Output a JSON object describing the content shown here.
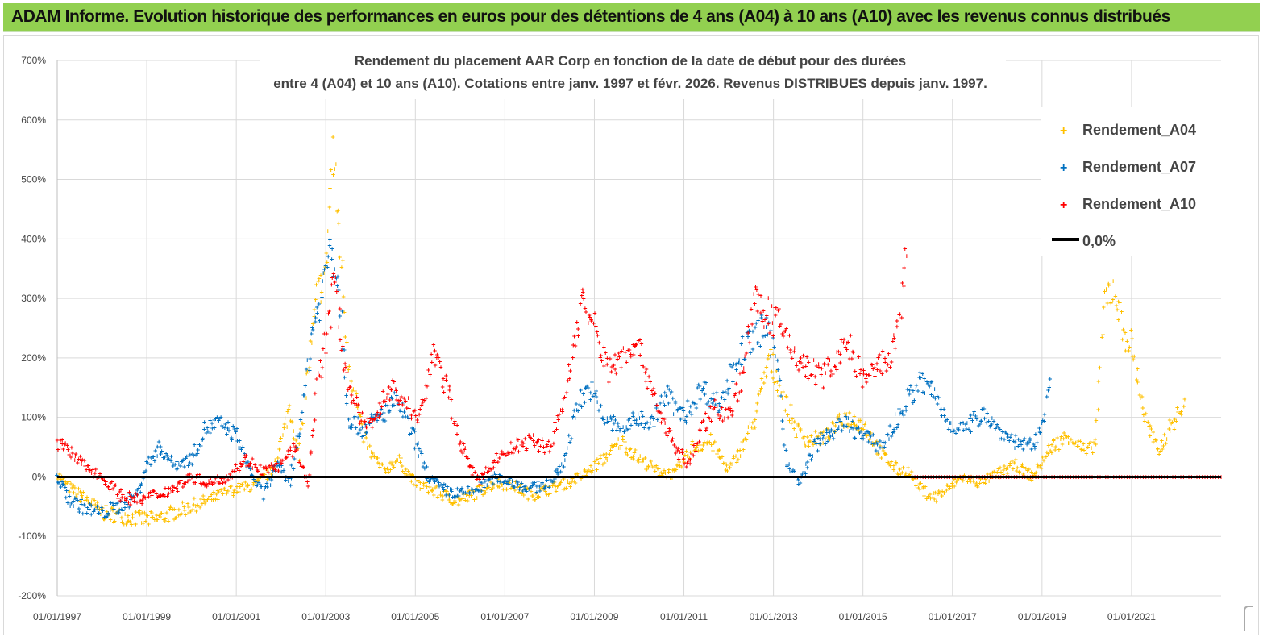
{
  "header": {
    "title": "ADAM Informe. Evolution historique des performances en euros pour des détentions de 4 ans (A04) à 10 ans (A10) avec les revenus connus distribués"
  },
  "colors": {
    "banner": "#92d050",
    "a04": "#ffc000",
    "a07": "#0070c0",
    "a10": "#ff0000",
    "zero": "#000000",
    "grid": "#d9d9d9"
  },
  "chart_data": {
    "type": "scatter",
    "title_line1": "Rendement du placement AAR Corp en fonction de la date de début pour des durées",
    "title_line2": "entre 4 (A04) et 10 ans (A10). Cotations entre janv. 1997 et févr. 2026. Revenus DISTRIBUES depuis janv. 1997.",
    "x_range": [
      1997.0,
      2023.0
    ],
    "ylim": [
      -200,
      700
    ],
    "y_ticks": [
      700,
      600,
      500,
      400,
      300,
      200,
      100,
      0,
      -100,
      -200
    ],
    "y_tick_labels": [
      "700%",
      "600%",
      "500%",
      "400%",
      "300%",
      "200%",
      "100%",
      "0%",
      "-100%",
      "-200%"
    ],
    "x_ticks": [
      1997,
      1999,
      2001,
      2003,
      2005,
      2007,
      2009,
      2011,
      2013,
      2015,
      2017,
      2019,
      2021
    ],
    "x_tick_labels": [
      "01/01/1997",
      "01/01/1999",
      "01/01/2001",
      "01/01/2003",
      "01/01/2005",
      "01/01/2007",
      "01/01/2009",
      "01/01/2011",
      "01/01/2013",
      "01/01/2015",
      "01/01/2017",
      "01/01/2019",
      "01/01/2021"
    ],
    "legend": [
      "Rendement_A04",
      "Rendement_A07",
      "Rendement_A10",
      "0,0%"
    ],
    "legend_position": "top-right",
    "series": [
      {
        "name": "Rendement_A04",
        "x": [
          1997.0,
          1997.3,
          1997.7,
          1998.0,
          1998.4,
          1998.8,
          1999.2,
          1999.6,
          2000.0,
          2000.5,
          2001.0,
          2001.4,
          2001.8,
          2002.0,
          2002.2,
          2002.4,
          2002.6,
          2002.8,
          2003.0,
          2003.15,
          2003.3,
          2003.5,
          2003.8,
          2004.0,
          2004.3,
          2004.6,
          2005.0,
          2005.3,
          2005.6,
          2006.0,
          2006.4,
          2006.8,
          2007.2,
          2007.6,
          2008.0,
          2008.4,
          2008.8,
          2009.2,
          2009.6,
          2010.0,
          2010.4,
          2010.8,
          2011.2,
          2011.6,
          2012.0,
          2012.3,
          2012.6,
          2012.9,
          2013.2,
          2013.5,
          2013.8,
          2014.2,
          2014.6,
          2015.0,
          2015.4,
          2015.8,
          2016.0,
          2016.3,
          2016.6,
          2016.9,
          2017.2,
          2017.6,
          2018.0,
          2018.4,
          2018.8,
          2019.2,
          2019.6,
          2020.0,
          2020.2,
          2020.4,
          2020.6,
          2020.8,
          2021.0,
          2021.3,
          2021.6,
          2021.9,
          2022.2
        ],
        "y": [
          5,
          -20,
          -40,
          -60,
          -65,
          -70,
          -72,
          -60,
          -50,
          -35,
          -20,
          -15,
          10,
          60,
          120,
          30,
          180,
          300,
          350,
          550,
          420,
          200,
          80,
          40,
          10,
          30,
          -10,
          -20,
          -30,
          -40,
          -25,
          -10,
          -15,
          -30,
          -20,
          -10,
          5,
          30,
          60,
          30,
          10,
          5,
          50,
          60,
          10,
          50,
          100,
          200,
          140,
          80,
          60,
          70,
          100,
          90,
          40,
          10,
          10,
          -20,
          -35,
          -20,
          0,
          -10,
          5,
          20,
          0,
          50,
          70,
          40,
          60,
          300,
          320,
          250,
          220,
          100,
          40,
          90,
          120
        ]
      },
      {
        "name": "Rendement_A07",
        "x": [
          1997.0,
          1997.3,
          1997.7,
          1998.0,
          1998.4,
          1998.8,
          1999.0,
          1999.3,
          1999.6,
          2000.0,
          2000.3,
          2000.6,
          2001.0,
          2001.3,
          2001.6,
          2001.9,
          2002.2,
          2002.5,
          2002.7,
          2002.9,
          2003.1,
          2003.3,
          2003.5,
          2003.8,
          2004.2,
          2004.6,
          2005.0,
          2005.3,
          2005.6,
          2006.0,
          2006.4,
          2006.8,
          2007.2,
          2007.6,
          2008.0,
          2008.3,
          2008.6,
          2008.9,
          2009.2,
          2009.6,
          2010.0,
          2010.3,
          2010.6,
          2011.0,
          2011.4,
          2011.8,
          2012.2,
          2012.5,
          2012.8,
          2013.1,
          2013.3,
          2013.6,
          2013.9,
          2014.2,
          2014.6,
          2015.0,
          2015.4,
          2015.8,
          2016.0,
          2016.3,
          2016.6,
          2016.9,
          2017.3,
          2017.7,
          2018.0,
          2018.4,
          2018.8,
          2019.0,
          2019.2
        ],
        "y": [
          0,
          -40,
          -55,
          -60,
          -50,
          -30,
          20,
          50,
          20,
          30,
          80,
          90,
          70,
          10,
          -30,
          20,
          -10,
          120,
          250,
          300,
          400,
          320,
          100,
          80,
          100,
          130,
          60,
          0,
          -20,
          -30,
          -20,
          0,
          -10,
          -20,
          -10,
          20,
          120,
          150,
          100,
          80,
          100,
          90,
          140,
          100,
          150,
          120,
          200,
          230,
          250,
          200,
          20,
          -10,
          50,
          70,
          90,
          70,
          50,
          100,
          130,
          160,
          140,
          90,
          80,
          110,
          80,
          60,
          50,
          80,
          190
        ]
      },
      {
        "name": "Rendement_A10",
        "x": [
          1997.0,
          1997.3,
          1997.6,
          1998.0,
          1998.4,
          1998.8,
          1999.2,
          1999.6,
          2000.0,
          2000.4,
          2000.8,
          2001.2,
          2001.6,
          2002.0,
          2002.3,
          2002.6,
          2002.8,
          2003.0,
          2003.2,
          2003.4,
          2003.6,
          2003.9,
          2004.2,
          2004.5,
          2004.8,
          2005.1,
          2005.4,
          2005.7,
          2006.0,
          2006.4,
          2006.8,
          2007.2,
          2007.6,
          2008.0,
          2008.3,
          2008.5,
          2008.7,
          2009.0,
          2009.3,
          2009.6,
          2009.9,
          2010.2,
          2010.5,
          2010.8,
          2011.1,
          2011.4,
          2011.7,
          2012.0,
          2012.3,
          2012.6,
          2012.9,
          2013.2,
          2013.5,
          2013.8,
          2014.1,
          2014.4,
          2014.7,
          2015.0,
          2015.3,
          2015.6,
          2015.8,
          2016.0
        ],
        "y": [
          60,
          40,
          20,
          0,
          -30,
          -40,
          -30,
          -20,
          0,
          -10,
          0,
          30,
          10,
          20,
          50,
          -10,
          150,
          230,
          330,
          200,
          130,
          80,
          120,
          150,
          120,
          100,
          210,
          150,
          60,
          -10,
          30,
          50,
          60,
          50,
          120,
          200,
          300,
          250,
          180,
          200,
          230,
          170,
          100,
          50,
          20,
          80,
          120,
          100,
          170,
          300,
          270,
          250,
          200,
          180,
          170,
          200,
          220,
          160,
          180,
          200,
          250,
          420
        ]
      }
    ],
    "zero_line": 0,
    "a10_flat_after": 2016.1
  }
}
